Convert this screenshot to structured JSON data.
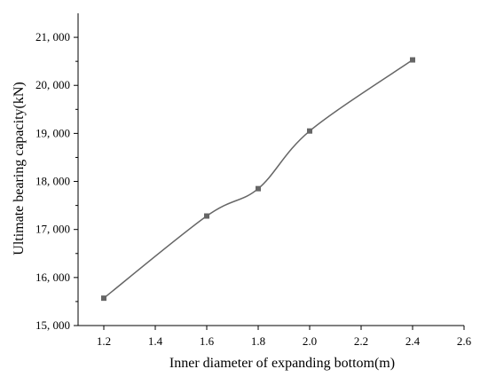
{
  "chart_data": {
    "type": "line",
    "title": "",
    "xlabel": "Inner diameter of expanding bottom(m)",
    "ylabel": "Ultimate bearing capacity(kN)",
    "xlim": [
      1.1,
      2.6
    ],
    "ylim": [
      15000,
      21500
    ],
    "x_ticks": [
      1.2,
      1.4,
      1.6,
      1.8,
      2.0,
      2.2,
      2.4,
      2.6
    ],
    "x_tick_labels": [
      "1.2",
      "1.4",
      "1.6",
      "1.8",
      "2.0",
      "2.2",
      "2.4",
      "2.6"
    ],
    "y_ticks": [
      15000,
      16000,
      17000,
      18000,
      19000,
      20000,
      21000
    ],
    "y_tick_labels": [
      "15, 000",
      "16, 000",
      "17, 000",
      "18, 000",
      "19, 000",
      "20, 000",
      "21, 000"
    ],
    "series": [
      {
        "x": [
          1.2,
          1.6,
          1.8,
          2.0,
          2.4
        ],
        "values": [
          15570,
          17280,
          17850,
          19050,
          20530
        ],
        "color": "#666666",
        "marker": "square",
        "smooth": true
      }
    ],
    "grid": false,
    "legend": "none"
  }
}
